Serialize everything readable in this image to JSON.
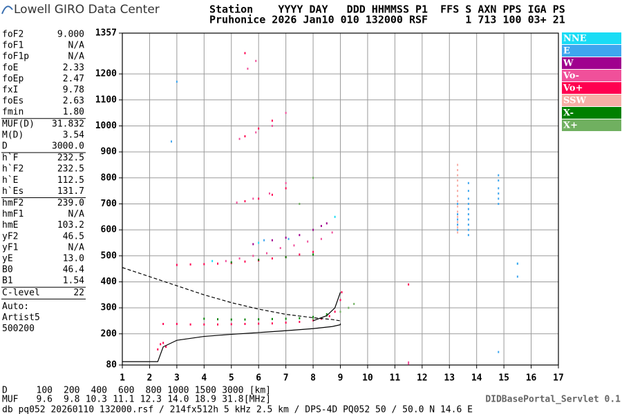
{
  "header": {
    "logo": "Lowell GIRO Data Center",
    "line1": "Station    YYYY DAY   DDD HHMMSS P1  FFS S AXN PPS IGA PS",
    "line2": "Pruhonice 2026 Jan10 010 132000 RSF      1 713 100 03+ 21"
  },
  "params": [
    [
      [
        "foF2",
        "9.000"
      ],
      [
        "foF1",
        "N/A"
      ],
      [
        "foF1p",
        "N/A"
      ],
      [
        "foE",
        "2.33"
      ],
      [
        "foEp",
        "2.47"
      ],
      [
        "fxI",
        "9.78"
      ],
      [
        "foEs",
        "2.63"
      ],
      [
        "fmin",
        "1.80"
      ]
    ],
    [
      [
        "MUF(D)",
        "31.832"
      ],
      [
        "M(D)",
        "3.54"
      ],
      [
        "D",
        "3000.0"
      ]
    ],
    [
      [
        "h`F",
        "232.5"
      ],
      [
        "h`F2",
        "232.5"
      ],
      [
        "h`E",
        "112.5"
      ],
      [
        "h`Es",
        "131.7"
      ]
    ],
    [
      [
        "hmF2",
        "239.0"
      ],
      [
        "hmF1",
        "N/A"
      ],
      [
        "hmE",
        "103.2"
      ],
      [
        "yF2",
        "46.5"
      ],
      [
        "yF1",
        "N/A"
      ],
      [
        "yE",
        "13.0"
      ],
      [
        "B0",
        "46.4"
      ],
      [
        "B1",
        "1.54"
      ]
    ],
    [
      [
        "C-level",
        "22"
      ]
    ]
  ],
  "auto": [
    "Auto:",
    "Artist5",
    "500200"
  ],
  "chart_data": {
    "type": "scatter",
    "xlim": [
      1,
      17
    ],
    "xticks": [
      1,
      2,
      3,
      4,
      5,
      6,
      7,
      8,
      9,
      10,
      11,
      12,
      13,
      14,
      15,
      16,
      17
    ],
    "ylim": [
      80,
      1357
    ],
    "yticks": [
      80,
      200,
      300,
      400,
      500,
      600,
      700,
      800,
      900,
      1000,
      1100,
      1200,
      1357
    ],
    "grid": true,
    "series": [
      {
        "name": "NNE",
        "color": "#19dcf5",
        "x": [
          8.8,
          6.0,
          15.5,
          4.3
        ],
        "y": [
          650,
          550,
          470,
          480
        ]
      },
      {
        "name": "E",
        "color": "#3ea6ef",
        "x": [
          13.7,
          13.7,
          13.7,
          13.7,
          13.7,
          13.7,
          13.7,
          13.7,
          13.7,
          13.7,
          14.8,
          14.8,
          14.8,
          14.8,
          14.8,
          14.8,
          13.3,
          13.3,
          13.3,
          13.3,
          13.3,
          15.5,
          15.5,
          14.8,
          2.8,
          3.0,
          6.2,
          7.1
        ],
        "y": [
          580,
          600,
          620,
          640,
          660,
          680,
          700,
          720,
          750,
          780,
          700,
          720,
          740,
          760,
          790,
          810,
          600,
          620,
          640,
          660,
          700,
          420,
          470,
          130,
          940,
          1170,
          560,
          565
        ]
      },
      {
        "name": "W",
        "color": "#a0008e",
        "x": [
          6.5,
          7.0,
          7.5,
          8.0,
          8.3,
          8.5,
          5.8
        ],
        "y": [
          560,
          570,
          580,
          600,
          615,
          625,
          545
        ]
      },
      {
        "name": "Vo-",
        "color": "#f0509a",
        "x": [
          4.8,
          5.3,
          5.8,
          6.3,
          6.8,
          7.3,
          7.8,
          8.3,
          8.7,
          5.2,
          5.8,
          6.4,
          7.0,
          5.3,
          5.9,
          6.5,
          7.0,
          5.6,
          5.9,
          11.5,
          11.5
        ],
        "y": [
          480,
          490,
          500,
          510,
          530,
          540,
          555,
          565,
          590,
          705,
          720,
          740,
          780,
          950,
          975,
          1000,
          1050,
          1220,
          1250,
          90,
          85
        ]
      },
      {
        "name": "Vo+",
        "color": "#ff0050",
        "x": [
          2.5,
          3.0,
          3.5,
          4.0,
          4.5,
          5.0,
          5.5,
          6.0,
          6.5,
          7.0,
          7.5,
          8.0,
          8.3,
          8.6,
          8.8,
          9.0,
          9.05,
          2.3,
          2.4,
          2.5,
          2.6,
          3.0,
          3.5,
          4.0,
          4.5,
          5.0,
          5.5,
          6.0,
          6.5,
          7.0,
          7.5,
          8.0,
          5.5,
          6.0,
          6.5,
          7.0,
          5.5,
          6.0,
          6.5,
          5.5,
          11.5
        ],
        "y": [
          238,
          238,
          236,
          236,
          236,
          237,
          238,
          239,
          240,
          243,
          246,
          252,
          258,
          268,
          285,
          330,
          360,
          140,
          160,
          165,
          150,
          465,
          467,
          468,
          470,
          472,
          478,
          482,
          490,
          495,
          505,
          515,
          710,
          720,
          735,
          760,
          960,
          990,
          1020,
          1280,
          390
        ]
      },
      {
        "name": "SSW",
        "color": "#f7aea6",
        "x": [
          13.3,
          13.3,
          13.3,
          13.3,
          13.3,
          13.3,
          13.3,
          13.3,
          13.3,
          13.3,
          13.3,
          13.3,
          13.3,
          13.3
        ],
        "y": [
          590,
          610,
          630,
          650,
          670,
          690,
          710,
          730,
          750,
          770,
          790,
          810,
          830,
          850
        ]
      },
      {
        "name": "X-",
        "color": "#008000",
        "x": [
          4.0,
          4.5,
          5.0,
          5.5,
          6.0,
          6.5,
          7.0,
          7.5,
          8.0,
          8.5,
          5.0,
          6.0,
          7.0,
          8.0
        ],
        "y": [
          258,
          256,
          255,
          255,
          256,
          257,
          258,
          260,
          265,
          275,
          475,
          485,
          495,
          505
        ]
      },
      {
        "name": "X+",
        "color": "#70b060",
        "x": [
          8.0,
          8.5,
          9.0,
          9.3,
          9.5,
          7.5,
          8.0
        ],
        "y": [
          258,
          270,
          285,
          300,
          315,
          700,
          800
        ]
      }
    ],
    "lines": [
      {
        "color": "#000",
        "style": "solid",
        "x": [
          1.0,
          2.3,
          2.5,
          3.0,
          4.0,
          5.0,
          6.0,
          7.0,
          8.0,
          8.7,
          9.0,
          9.0
        ],
        "y": [
          93,
          93,
          150,
          175,
          190,
          198,
          205,
          212,
          220,
          228,
          235,
          240
        ]
      },
      {
        "color": "#000",
        "style": "solid",
        "x": [
          8.0,
          8.5,
          8.8,
          9.0
        ],
        "y": [
          250,
          270,
          300,
          360
        ]
      },
      {
        "color": "#000",
        "style": "dashed",
        "x": [
          1.0,
          2.0,
          3.0,
          4.0,
          5.0,
          6.0,
          7.0,
          8.0,
          8.7,
          9.0
        ],
        "y": [
          455,
          420,
          385,
          350,
          320,
          295,
          275,
          262,
          255,
          250
        ]
      }
    ]
  },
  "dmuf": {
    "d_label": "D",
    "d": [
      "100",
      "200",
      "400",
      "600",
      "800",
      "1000",
      "1500",
      "3000",
      "[km]"
    ],
    "muf_label": "MUF",
    "muf": [
      "9.6",
      "9.8",
      "10.3",
      "11.1",
      "12.3",
      "14.0",
      "18.9",
      "31.8",
      "[MHz]"
    ]
  },
  "footer": "db pq052 20260110 132000.rsf / 214fx512h 5 kHz 2.5 km / DPS-4D PQ052 50 / 50.0 N 14.6 E",
  "servlet": "DIDBasePortal_Servlet 0.1"
}
